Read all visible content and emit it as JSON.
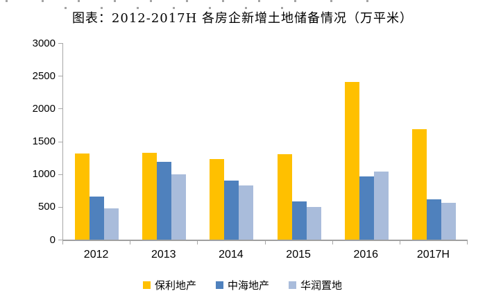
{
  "title": "图表：2012-2017H 各房企新增土地储备情况（万平米）",
  "colors": {
    "axis": "#a6a6a6",
    "text": "#000000",
    "background": "#ffffff"
  },
  "chart_data": {
    "type": "bar",
    "title": "图表：2012-2017H 各房企新增土地储备情况（万平米）",
    "categories": [
      "2012",
      "2013",
      "2014",
      "2015",
      "2016",
      "2017H"
    ],
    "series": [
      {
        "name": "保利地产",
        "color": "#FFC000",
        "values": [
          1310,
          1330,
          1230,
          1300,
          2405,
          1690
        ]
      },
      {
        "name": "中海地产",
        "color": "#4F81BD",
        "values": [
          655,
          1190,
          900,
          585,
          960,
          620
        ]
      },
      {
        "name": "华润置地",
        "color": "#A9BCDB",
        "values": [
          480,
          1000,
          830,
          495,
          1040,
          560
        ]
      }
    ],
    "xlabel": "",
    "ylabel": "",
    "ylim": [
      0,
      3000
    ],
    "yticks": [
      0,
      500,
      1000,
      1500,
      2000,
      2500,
      3000
    ],
    "grid": false,
    "legend_position": "bottom"
  }
}
